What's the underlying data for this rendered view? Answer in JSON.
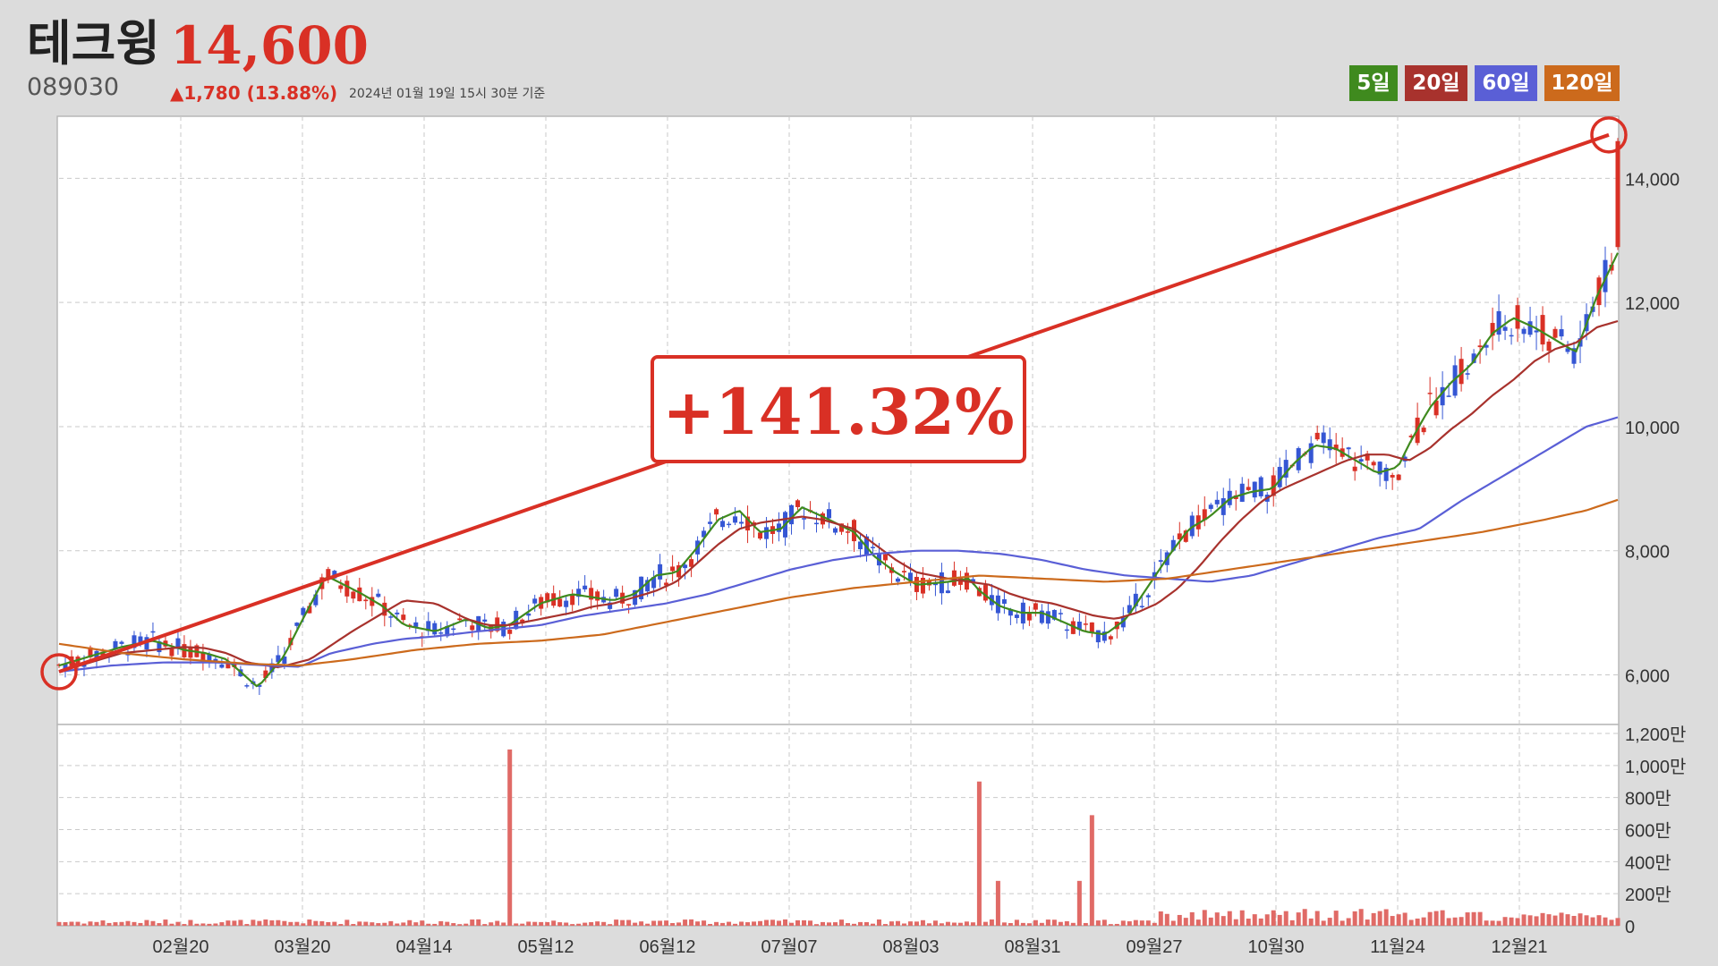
{
  "header": {
    "name": "테크윙",
    "price": "14,600",
    "code": "089030",
    "change": "▲1,780 (13.88%)",
    "timestamp": "2024년 01월 19일 15시 30분 기준"
  },
  "legend": [
    {
      "label": "5일",
      "color": "#3f8a1e"
    },
    {
      "label": "20일",
      "color": "#a8322d"
    },
    {
      "label": "60일",
      "color": "#5a5fd6"
    },
    {
      "label": "120일",
      "color": "#cc6a1c"
    }
  ],
  "colors": {
    "up": "#d93025",
    "down": "#3556d4",
    "trend": "#d93025"
  },
  "chart_data": [
    {
      "type": "line",
      "title": "",
      "annotation": "+141.32%",
      "x_ticks": [
        "02월20",
        "03월20",
        "04월14",
        "05월12",
        "06월12",
        "07월07",
        "08월03",
        "08월31",
        "09월27",
        "10월30",
        "11월24",
        "12월21"
      ],
      "y_ticks": [
        "6,000",
        "8,000",
        "10,000",
        "12,000",
        "14,000"
      ],
      "ylim": [
        5200,
        15000
      ],
      "grid": true,
      "legend_position": "top-right",
      "trend_line": {
        "from": 6050,
        "to": 14700
      },
      "series": [
        {
          "name": "5일",
          "key": "ma5",
          "anchors": [
            [
              0,
              6150
            ],
            [
              0.03,
              6300
            ],
            [
              0.06,
              6450
            ],
            [
              0.09,
              6550
            ],
            [
              0.12,
              6400
            ],
            [
              0.14,
              6350
            ],
            [
              0.16,
              6250
            ],
            [
              0.19,
              5800
            ],
            [
              0.215,
              6300
            ],
            [
              0.23,
              6800
            ],
            [
              0.255,
              7600
            ],
            [
              0.29,
              7300
            ],
            [
              0.31,
              7100
            ],
            [
              0.33,
              6800
            ],
            [
              0.36,
              6700
            ],
            [
              0.39,
              6900
            ],
            [
              0.41,
              6750
            ],
            [
              0.43,
              6800
            ],
            [
              0.46,
              7150
            ],
            [
              0.49,
              7300
            ],
            [
              0.51,
              7250
            ],
            [
              0.53,
              7200
            ],
            [
              0.55,
              7300
            ],
            [
              0.57,
              7600
            ],
            [
              0.59,
              7650
            ],
            [
              0.61,
              8050
            ],
            [
              0.63,
              8500
            ],
            [
              0.65,
              8650
            ],
            [
              0.67,
              8300
            ],
            [
              0.69,
              8350
            ],
            [
              0.71,
              8700
            ],
            [
              0.73,
              8550
            ],
            [
              0.76,
              8300
            ],
            [
              0.78,
              7900
            ],
            [
              0.8,
              7650
            ],
            [
              0.82,
              7450
            ],
            [
              0.85,
              7500
            ],
            [
              0.87,
              7550
            ],
            [
              0.88,
              7350
            ],
            [
              0.9,
              7100
            ],
            [
              0.92,
              7000
            ],
            [
              0.94,
              7000
            ],
            [
              0.96,
              6850
            ],
            [
              0.98,
              6700
            ],
            [
              1.0,
              6650
            ],
            [
              1.02,
              6900
            ],
            [
              1.04,
              7400
            ],
            [
              1.06,
              7900
            ],
            [
              1.08,
              8350
            ],
            [
              1.1,
              8550
            ],
            [
              1.12,
              8850
            ],
            [
              1.14,
              8950
            ],
            [
              1.16,
              9000
            ],
            [
              1.18,
              9400
            ],
            [
              1.2,
              9700
            ],
            [
              1.22,
              9650
            ],
            [
              1.24,
              9450
            ],
            [
              1.26,
              9250
            ],
            [
              1.28,
              9350
            ],
            [
              1.29,
              9700
            ],
            [
              1.31,
              10300
            ],
            [
              1.33,
              10700
            ],
            [
              1.35,
              11000
            ],
            [
              1.37,
              11500
            ],
            [
              1.39,
              11750
            ],
            [
              1.41,
              11600
            ],
            [
              1.43,
              11400
            ],
            [
              1.45,
              11200
            ],
            [
              1.47,
              12100
            ],
            [
              1.49,
              12800
            ]
          ]
        },
        {
          "name": "20일",
          "key": "ma20",
          "anchors": [
            [
              0,
              6050
            ],
            [
              0.03,
              6200
            ],
            [
              0.06,
              6350
            ],
            [
              0.09,
              6400
            ],
            [
              0.12,
              6450
            ],
            [
              0.14,
              6430
            ],
            [
              0.16,
              6350
            ],
            [
              0.18,
              6200
            ],
            [
              0.21,
              6120
            ],
            [
              0.24,
              6250
            ],
            [
              0.28,
              6700
            ],
            [
              0.31,
              7000
            ],
            [
              0.33,
              7200
            ],
            [
              0.36,
              7150
            ],
            [
              0.39,
              6900
            ],
            [
              0.41,
              6800
            ],
            [
              0.43,
              6800
            ],
            [
              0.46,
              6900
            ],
            [
              0.49,
              7000
            ],
            [
              0.51,
              7100
            ],
            [
              0.53,
              7150
            ],
            [
              0.55,
              7250
            ],
            [
              0.57,
              7350
            ],
            [
              0.59,
              7500
            ],
            [
              0.61,
              7800
            ],
            [
              0.63,
              8100
            ],
            [
              0.65,
              8350
            ],
            [
              0.67,
              8450
            ],
            [
              0.69,
              8500
            ],
            [
              0.71,
              8550
            ],
            [
              0.73,
              8500
            ],
            [
              0.76,
              8350
            ],
            [
              0.78,
              8100
            ],
            [
              0.8,
              7850
            ],
            [
              0.82,
              7650
            ],
            [
              0.85,
              7550
            ],
            [
              0.87,
              7500
            ],
            [
              0.89,
              7450
            ],
            [
              0.91,
              7300
            ],
            [
              0.93,
              7200
            ],
            [
              0.95,
              7150
            ],
            [
              0.97,
              7050
            ],
            [
              0.99,
              6950
            ],
            [
              1.01,
              6900
            ],
            [
              1.03,
              7000
            ],
            [
              1.05,
              7150
            ],
            [
              1.07,
              7400
            ],
            [
              1.09,
              7750
            ],
            [
              1.11,
              8150
            ],
            [
              1.13,
              8500
            ],
            [
              1.15,
              8800
            ],
            [
              1.17,
              9000
            ],
            [
              1.19,
              9150
            ],
            [
              1.21,
              9300
            ],
            [
              1.23,
              9450
            ],
            [
              1.25,
              9550
            ],
            [
              1.27,
              9550
            ],
            [
              1.29,
              9450
            ],
            [
              1.31,
              9650
            ],
            [
              1.33,
              9950
            ],
            [
              1.35,
              10200
            ],
            [
              1.37,
              10500
            ],
            [
              1.39,
              10750
            ],
            [
              1.41,
              11050
            ],
            [
              1.43,
              11250
            ],
            [
              1.45,
              11350
            ],
            [
              1.47,
              11600
            ],
            [
              1.49,
              11700
            ]
          ]
        },
        {
          "name": "60일",
          "key": "ma60",
          "anchors": [
            [
              0,
              6050
            ],
            [
              0.05,
              6150
            ],
            [
              0.1,
              6200
            ],
            [
              0.15,
              6200
            ],
            [
              0.2,
              6150
            ],
            [
              0.23,
              6130
            ],
            [
              0.26,
              6350
            ],
            [
              0.3,
              6500
            ],
            [
              0.33,
              6580
            ],
            [
              0.36,
              6620
            ],
            [
              0.4,
              6700
            ],
            [
              0.43,
              6750
            ],
            [
              0.46,
              6800
            ],
            [
              0.5,
              6950
            ],
            [
              0.54,
              7050
            ],
            [
              0.58,
              7150
            ],
            [
              0.62,
              7300
            ],
            [
              0.66,
              7500
            ],
            [
              0.7,
              7700
            ],
            [
              0.74,
              7850
            ],
            [
              0.78,
              7950
            ],
            [
              0.82,
              8000
            ],
            [
              0.86,
              8000
            ],
            [
              0.9,
              7950
            ],
            [
              0.94,
              7850
            ],
            [
              0.98,
              7700
            ],
            [
              1.02,
              7600
            ],
            [
              1.06,
              7550
            ],
            [
              1.1,
              7500
            ],
            [
              1.14,
              7600
            ],
            [
              1.18,
              7800
            ],
            [
              1.22,
              8000
            ],
            [
              1.26,
              8200
            ],
            [
              1.3,
              8350
            ],
            [
              1.34,
              8800
            ],
            [
              1.38,
              9200
            ],
            [
              1.42,
              9600
            ],
            [
              1.46,
              10000
            ],
            [
              1.49,
              10150
            ]
          ]
        },
        {
          "name": "120일",
          "key": "ma120",
          "anchors": [
            [
              0,
              6500
            ],
            [
              0.06,
              6350
            ],
            [
              0.12,
              6250
            ],
            [
              0.18,
              6180
            ],
            [
              0.23,
              6150
            ],
            [
              0.28,
              6250
            ],
            [
              0.34,
              6400
            ],
            [
              0.4,
              6500
            ],
            [
              0.46,
              6550
            ],
            [
              0.52,
              6650
            ],
            [
              0.58,
              6850
            ],
            [
              0.64,
              7050
            ],
            [
              0.7,
              7250
            ],
            [
              0.76,
              7400
            ],
            [
              0.82,
              7500
            ],
            [
              0.88,
              7600
            ],
            [
              0.94,
              7550
            ],
            [
              1.0,
              7500
            ],
            [
              1.06,
              7550
            ],
            [
              1.12,
              7700
            ],
            [
              1.18,
              7850
            ],
            [
              1.24,
              8000
            ],
            [
              1.3,
              8150
            ],
            [
              1.36,
              8300
            ],
            [
              1.42,
              8500
            ],
            [
              1.46,
              8650
            ],
            [
              1.49,
              8820
            ]
          ]
        }
      ]
    },
    {
      "type": "bar",
      "title": "",
      "y_ticks": [
        "0",
        "200만",
        "400만",
        "600만",
        "800만",
        "1,000만",
        "1,200만"
      ],
      "ylim": [
        0,
        1200
      ],
      "unit": "만",
      "spikes": [
        [
          0.43,
          1100
        ],
        [
          0.88,
          900
        ],
        [
          0.99,
          690
        ],
        [
          0.975,
          280
        ],
        [
          0.9,
          280
        ]
      ]
    }
  ]
}
